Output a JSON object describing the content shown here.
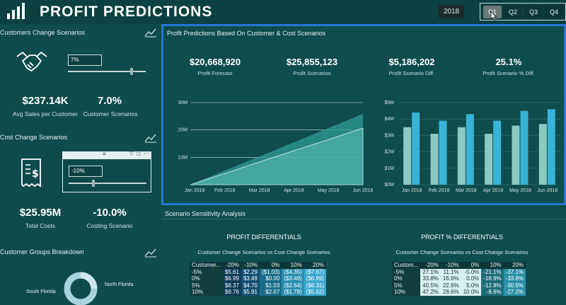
{
  "header": {
    "title": "PROFIT PREDICTIONS",
    "year": "2018",
    "quarters": [
      "Q1",
      "Q2",
      "Q3",
      "Q4"
    ],
    "active_quarter": "Q1"
  },
  "customers_panel": {
    "title": "Customers Change Scenarios",
    "input_value": "7%",
    "slider_fraction": 0.8,
    "avg_sales_value": "$237.14K",
    "avg_sales_label": "Avg Sales per Customer",
    "scenario_value": "7.0%",
    "scenario_label": "Customer Scenarios"
  },
  "cost_panel": {
    "title": "Cost Change Scenarios",
    "input_value": "-10%",
    "slider_fraction": 0.3,
    "total_costs_value": "$25.95M",
    "total_costs_label": "Total Costs",
    "scenario_value": "-10.0%",
    "scenario_label": "Costing Scenario"
  },
  "groups_panel": {
    "title": "Customer Groups Breakdown",
    "labels": [
      "South Florida",
      "North Florida"
    ]
  },
  "main_panel": {
    "title": "Profit Predictions Based On Customer & Cost Scenarios",
    "kpis": [
      {
        "value": "$20,668,920",
        "label": "Profit Forecast"
      },
      {
        "value": "$25,855,123",
        "label": "Profit Scenarios"
      },
      {
        "value": "$5,186,202",
        "label": "Profit Scenario Diff."
      },
      {
        "value": "25.1%",
        "label": "Profit Scenario % Diff."
      }
    ]
  },
  "chart_data": [
    {
      "type": "area",
      "x": [
        "Jan 2018",
        "Feb 2018",
        "Mar 2018",
        "Apr 2018",
        "May 2018",
        "Jun 2018"
      ],
      "y_ticks": [
        "30M",
        "20M",
        "10M"
      ],
      "ylim": [
        0,
        30
      ],
      "series": [
        {
          "values": [
            0,
            5.2,
            10.3,
            15.5,
            20.7,
            25.9
          ]
        },
        {
          "values": [
            0,
            4.1,
            8.3,
            12.4,
            16.5,
            20.7
          ]
        }
      ]
    },
    {
      "type": "bar",
      "categories": [
        "Jan 2018",
        "Feb 2018",
        "Mar 2018",
        "Apr 2018",
        "May 2018",
        "Jun 2018"
      ],
      "y_ticks": [
        "$5M",
        "$4M",
        "$3M",
        "$2M",
        "$1M",
        "$0M"
      ],
      "ylim": [
        0,
        5
      ],
      "series": [
        {
          "values": [
            3.5,
            3.1,
            3.5,
            3.1,
            3.6,
            3.7
          ]
        },
        {
          "values": [
            4.4,
            3.9,
            4.3,
            3.9,
            4.5,
            4.6
          ]
        }
      ]
    }
  ],
  "sensitivity": {
    "title": "Scenario Sensitivity Analysis",
    "left": {
      "title": "PROFIT DIFFERENTIALS",
      "subtitle": "Customer Change Scenarios vs Cost Change Scenarios",
      "headers": [
        "Customer...",
        "-20%",
        "-10%",
        "0%",
        "10%",
        "20%"
      ],
      "rows": [
        [
          "-5%",
          "$5.61",
          "$2.29",
          "($1.03)",
          "($4.35)",
          "($7.67)"
        ],
        [
          "0%",
          "$6.99",
          "$3.49",
          "$0.00",
          "($3.49)",
          "($6.99)"
        ],
        [
          "5%",
          "$8.37",
          "$4.70",
          "$1.03",
          "($2.64)",
          "($6.31)"
        ],
        [
          "10%",
          "$9.76",
          "$5.91",
          "$2.07",
          "($1.78)",
          "($5.62)"
        ]
      ]
    },
    "right": {
      "title": "PROFIT % DIFFERENTIALS",
      "subtitle": "Customer Change Scenarios vs Cost Change Scenarios",
      "headers": [
        "Custom...",
        "-20%",
        "-10%",
        "0%",
        "10%",
        "20%"
      ],
      "rows": [
        [
          "-5%",
          "27.1%",
          "11.1%",
          "-5.0%",
          "-21.1%",
          "-37.1%"
        ],
        [
          "0%",
          "33.8%",
          "16.9%",
          "0.0%",
          "-16.9%",
          "-33.8%"
        ],
        [
          "5%",
          "40.5%",
          "22.8%",
          "5.0%",
          "-12.8%",
          "-30.5%"
        ],
        [
          "10%",
          "47.2%",
          "28.6%",
          "10.0%",
          "-8.6%",
          "-27.2%"
        ]
      ]
    }
  },
  "colors": {
    "background": "#0e4a4a",
    "highlight_border": "#2876d6",
    "bar_light": "#8cc9c3",
    "bar_dark": "#39b3d6",
    "area_fill": "#2f9c96"
  }
}
